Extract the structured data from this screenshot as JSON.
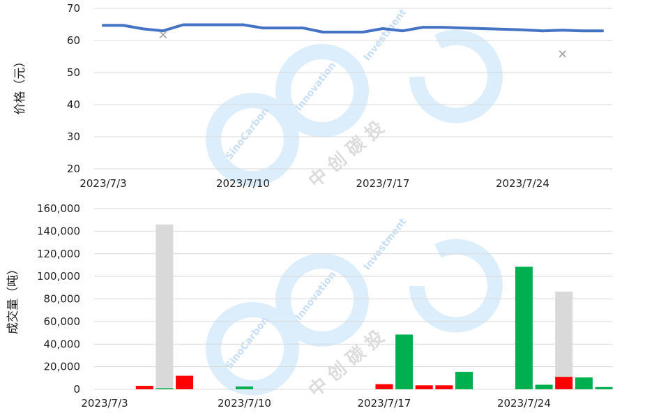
{
  "watermark": {
    "brand": "SinoCarbon",
    "tagline": "Innovation",
    "tagline2": "Investment",
    "cn": "中 创 碳 投"
  },
  "chart_data": [
    {
      "type": "line",
      "title": "",
      "xlabel": "",
      "ylabel": "价格（元）",
      "ylim": [
        20,
        70
      ],
      "yticks": [
        20,
        30,
        40,
        50,
        60,
        70
      ],
      "x_range": [
        "2023-07-03",
        "2023-07-28"
      ],
      "x_tick_labels": [
        {
          "date": "2023-07-03",
          "label": "2023/7/3"
        },
        {
          "date": "2023-07-10",
          "label": "2023/7/10"
        },
        {
          "date": "2023-07-17",
          "label": "2023/7/17"
        },
        {
          "date": "2023-07-24",
          "label": "2023/7/24"
        }
      ],
      "grid": true,
      "series": [
        {
          "style": "line",
          "color": "#4472c4",
          "points": [
            {
              "date": "2023-07-03",
              "y": 64.7
            },
            {
              "date": "2023-07-04",
              "y": 64.7
            },
            {
              "date": "2023-07-05",
              "y": 63.6
            },
            {
              "date": "2023-07-06",
              "y": 63.0
            },
            {
              "date": "2023-07-07",
              "y": 64.9
            },
            {
              "date": "2023-07-08",
              "y": 64.9
            },
            {
              "date": "2023-07-09",
              "y": 64.9
            },
            {
              "date": "2023-07-10",
              "y": 64.9
            },
            {
              "date": "2023-07-11",
              "y": 63.9
            },
            {
              "date": "2023-07-12",
              "y": 63.9
            },
            {
              "date": "2023-07-13",
              "y": 63.9
            },
            {
              "date": "2023-07-14",
              "y": 62.6
            },
            {
              "date": "2023-07-15",
              "y": 62.6
            },
            {
              "date": "2023-07-16",
              "y": 62.6
            },
            {
              "date": "2023-07-17",
              "y": 63.7
            },
            {
              "date": "2023-07-18",
              "y": 63.0
            },
            {
              "date": "2023-07-19",
              "y": 64.1
            },
            {
              "date": "2023-07-20",
              "y": 64.1
            },
            {
              "date": "2023-07-21",
              "y": 63.9
            },
            {
              "date": "2023-07-22",
              "y": 63.7
            },
            {
              "date": "2023-07-23",
              "y": 63.5
            },
            {
              "date": "2023-07-24",
              "y": 63.3
            },
            {
              "date": "2023-07-25",
              "y": 63.0
            },
            {
              "date": "2023-07-26",
              "y": 63.2
            },
            {
              "date": "2023-07-27",
              "y": 63.0
            },
            {
              "date": "2023-07-28",
              "y": 63.0
            }
          ]
        },
        {
          "style": "marker-x",
          "color": "#a6a6a6",
          "points": [
            {
              "date": "2023-07-06",
              "y": 61.8
            },
            {
              "date": "2023-07-26",
              "y": 55.8
            }
          ]
        }
      ]
    },
    {
      "type": "bar",
      "title": "",
      "xlabel": "",
      "ylabel": "成交量（吨）",
      "ylim": [
        0,
        160000
      ],
      "yticks": [
        {
          "value": 0,
          "label": "0"
        },
        {
          "value": 20000,
          "label": "20,000"
        },
        {
          "value": 40000,
          "label": "40,000"
        },
        {
          "value": 60000,
          "label": "60,000"
        },
        {
          "value": 80000,
          "label": "80,000"
        },
        {
          "value": 100000,
          "label": "100,000"
        },
        {
          "value": 120000,
          "label": "120,000"
        },
        {
          "value": 140000,
          "label": "140,000"
        },
        {
          "value": 160000,
          "label": "160,000"
        }
      ],
      "x_range": [
        "2023-07-03",
        "2023-07-28"
      ],
      "x_tick_labels": [
        {
          "date": "2023-07-03",
          "label": "2023/7/3"
        },
        {
          "date": "2023-07-10",
          "label": "2023/7/10"
        },
        {
          "date": "2023-07-17",
          "label": "2023/7/17"
        },
        {
          "date": "2023-07-24",
          "label": "2023/7/24"
        }
      ],
      "grid": true,
      "colors": {
        "red": "#ff0000",
        "green": "#00b050",
        "gray": "#d9d9d9"
      },
      "bars": [
        {
          "date": "2023-07-05",
          "value": 3000,
          "color": "red"
        },
        {
          "date": "2023-07-06",
          "value": 146000,
          "color": "gray"
        },
        {
          "date": "2023-07-06",
          "value": 1000,
          "color": "green"
        },
        {
          "date": "2023-07-07",
          "value": 12000,
          "color": "red"
        },
        {
          "date": "2023-07-10",
          "value": 2500,
          "color": "green"
        },
        {
          "date": "2023-07-17",
          "value": 4500,
          "color": "red"
        },
        {
          "date": "2023-07-18",
          "value": 48500,
          "color": "green"
        },
        {
          "date": "2023-07-19",
          "value": 3500,
          "color": "red"
        },
        {
          "date": "2023-07-20",
          "value": 3500,
          "color": "red"
        },
        {
          "date": "2023-07-21",
          "value": 15500,
          "color": "green"
        },
        {
          "date": "2023-07-24",
          "value": 108500,
          "color": "green"
        },
        {
          "date": "2023-07-25",
          "value": 4000,
          "color": "green"
        },
        {
          "date": "2023-07-26",
          "value": 86500,
          "color": "gray"
        },
        {
          "date": "2023-07-26",
          "value": 11000,
          "color": "red"
        },
        {
          "date": "2023-07-27",
          "value": 10500,
          "color": "green"
        },
        {
          "date": "2023-07-28",
          "value": 2000,
          "color": "green"
        }
      ]
    }
  ]
}
